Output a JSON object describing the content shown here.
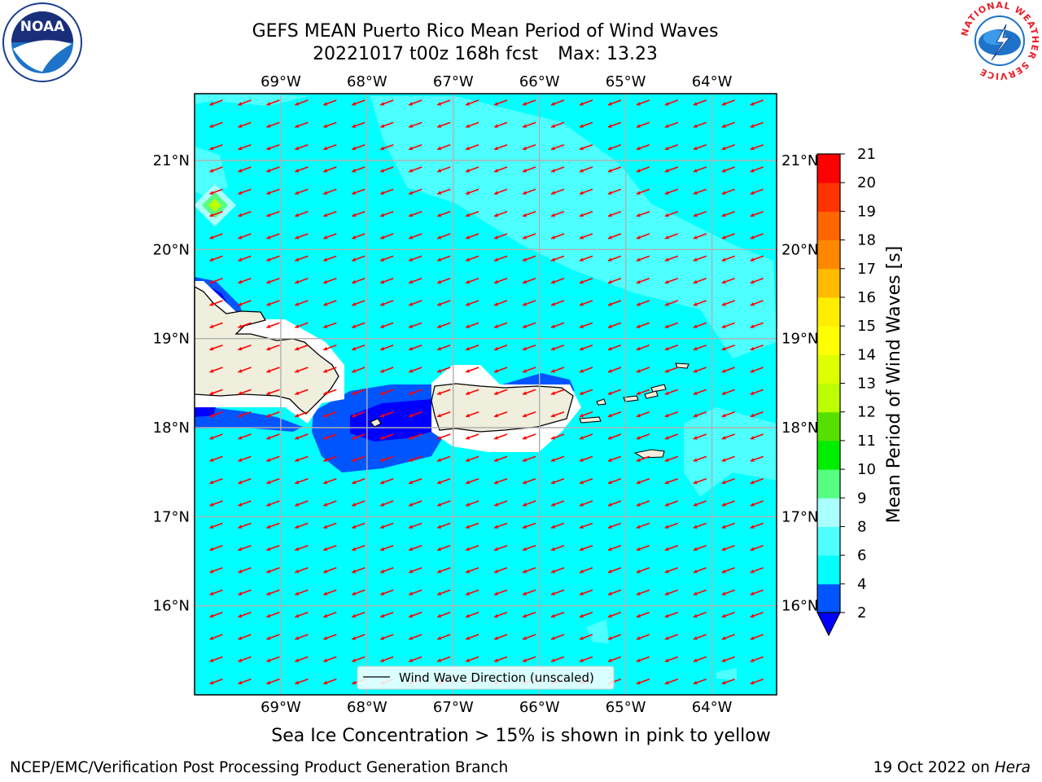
{
  "title": {
    "line1": "GEFS MEAN Puerto Rico Mean Period of Wind Waves",
    "line2": "20221017 t00z 168h fcst",
    "max": "Max: 13.23"
  },
  "logos": {
    "left": "NOAA",
    "left_icon": "noaa-logo-icon",
    "right_icon": "nws-logo-icon",
    "right_ring_text": "NATIONAL WEATHER SERVICE"
  },
  "map": {
    "lon_min": -70.0,
    "lon_max": -63.25,
    "lat_min": 15.0,
    "lat_max": 21.75,
    "lon_labels": [
      {
        "lon": -69,
        "label": "69°W"
      },
      {
        "lon": -68,
        "label": "68°W"
      },
      {
        "lon": -67,
        "label": "67°W"
      },
      {
        "lon": -66,
        "label": "66°W"
      },
      {
        "lon": -65,
        "label": "65°W"
      },
      {
        "lon": -64,
        "label": "64°W"
      }
    ],
    "lat_labels": [
      {
        "lat": 21,
        "label": "21°N"
      },
      {
        "lat": 20,
        "label": "20°N"
      },
      {
        "lat": 19,
        "label": "19°N"
      },
      {
        "lat": 18,
        "label": "18°N"
      },
      {
        "lat": 17,
        "label": "17°N"
      },
      {
        "lat": 16,
        "label": "16°N"
      }
    ],
    "background_color": "#00ffff",
    "land_color": "#f0eedc",
    "arrow_color": "#ff0000",
    "arrow_direction": "toward west-southwest",
    "legend_label": "Wind Wave Direction (unscaled)"
  },
  "colorbar": {
    "label": "Mean Period of Wind Waves [s]",
    "ticks": [
      "2",
      "4",
      "6",
      "8",
      "9",
      "10",
      "11",
      "12",
      "13",
      "14",
      "15",
      "16",
      "17",
      "18",
      "19",
      "20",
      "21"
    ],
    "colors": [
      "#0055ff",
      "#00ffff",
      "#4dffff",
      "#aaffff",
      "#55ff80",
      "#00ee00",
      "#55e000",
      "#bbff00",
      "#ddff00",
      "#ffff00",
      "#ffee00",
      "#ffbb00",
      "#ff8800",
      "#ff6600",
      "#ff3300",
      "#ff0000"
    ],
    "under_color": "#0000ff"
  },
  "note": "Sea Ice Concentration > 15% is shown in pink to yellow",
  "footer": {
    "left": "NCEP/EMC/Verification Post Processing Product Generation Branch",
    "date": "19 Oct 2022 on",
    "host": "Hera"
  }
}
